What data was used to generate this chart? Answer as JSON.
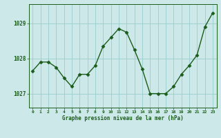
{
  "x": [
    0,
    1,
    2,
    3,
    4,
    5,
    6,
    7,
    8,
    9,
    10,
    11,
    12,
    13,
    14,
    15,
    16,
    17,
    18,
    19,
    20,
    21,
    22,
    23
  ],
  "y": [
    1027.65,
    1027.9,
    1027.9,
    1027.75,
    1027.45,
    1027.2,
    1027.55,
    1027.55,
    1027.8,
    1028.35,
    1028.6,
    1028.85,
    1028.75,
    1028.25,
    1027.7,
    1027.0,
    1027.0,
    1027.0,
    1027.2,
    1027.55,
    1027.8,
    1028.1,
    1028.9,
    1029.3
  ],
  "line_color": "#1a5c1a",
  "marker": "D",
  "marker_size": 2.5,
  "bg_color": "#cce8e8",
  "grid_color": "#99cccc",
  "xlabel": "Graphe pression niveau de la mer (hPa)",
  "xlabel_color": "#1a5c1a",
  "tick_color": "#1a5c1a",
  "ylim": [
    1026.6,
    1029.55
  ],
  "yticks": [
    1027,
    1028,
    1029
  ],
  "xlim": [
    -0.5,
    23.5
  ],
  "xticks": [
    0,
    1,
    2,
    3,
    4,
    5,
    6,
    7,
    8,
    9,
    10,
    11,
    12,
    13,
    14,
    15,
    16,
    17,
    18,
    19,
    20,
    21,
    22,
    23
  ],
  "xtick_labels": [
    "0",
    "1",
    "2",
    "3",
    "4",
    "5",
    "6",
    "7",
    "8",
    "9",
    "10",
    "11",
    "12",
    "13",
    "14",
    "15",
    "16",
    "17",
    "18",
    "19",
    "20",
    "21",
    "22",
    "23"
  ]
}
